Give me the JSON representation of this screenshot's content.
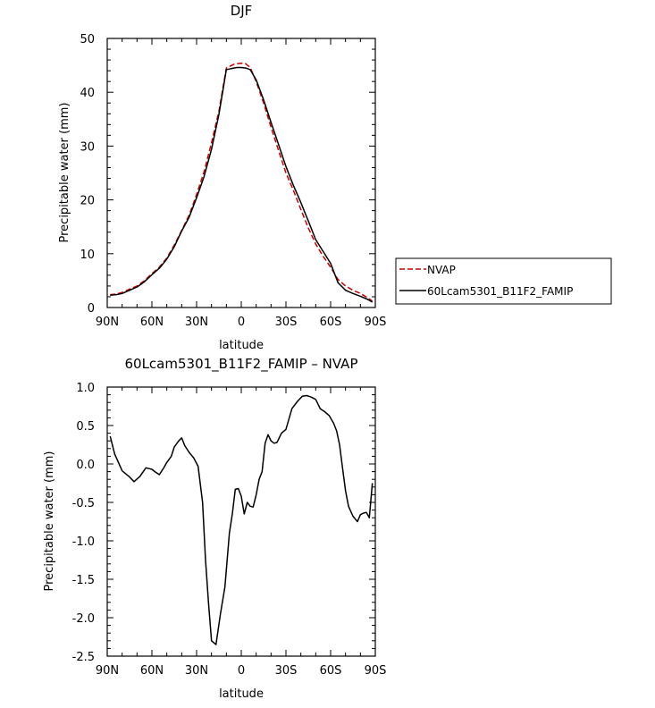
{
  "chart_data": [
    {
      "type": "line",
      "title": "DJF",
      "xlabel": "latitude",
      "ylabel": "Precipitable water (mm)",
      "xlim": [
        -90,
        90
      ],
      "ylim": [
        0,
        50
      ],
      "x_ticks": [
        -90,
        -60,
        -30,
        0,
        30,
        60,
        90
      ],
      "x_tick_labels": [
        "90N",
        "60N",
        "30N",
        "0",
        "30S",
        "60S",
        "90S"
      ],
      "y_ticks": [
        0,
        10,
        20,
        30,
        40,
        50
      ],
      "y_tick_labels": [
        "0",
        "10",
        "20",
        "30",
        "40",
        "50"
      ],
      "legend_position": "right",
      "series": [
        {
          "name": "NVAP",
          "color": "#cc0000",
          "dash": "dashed",
          "x": [
            -88,
            -84,
            -80,
            -75,
            -70,
            -65,
            -60,
            -55,
            -50,
            -45,
            -40,
            -35,
            -30,
            -25,
            -20,
            -15,
            -10,
            -5,
            -3,
            0,
            3,
            6,
            10,
            15,
            20,
            25,
            30,
            35,
            40,
            45,
            50,
            55,
            60,
            65,
            70,
            75,
            80,
            85,
            88
          ],
          "y": [
            2.4,
            2.5,
            2.8,
            3.4,
            4.0,
            5.0,
            6.3,
            7.5,
            9.2,
            11.6,
            14.3,
            17.2,
            21.0,
            25.2,
            30.6,
            36.5,
            44.5,
            45.2,
            45.3,
            45.4,
            45.3,
            44.6,
            42.0,
            38.0,
            33.5,
            29.2,
            25.0,
            21.8,
            18.2,
            14.8,
            11.8,
            9.5,
            7.5,
            5.2,
            4.0,
            3.2,
            2.6,
            1.8,
            1.2
          ]
        },
        {
          "name": "60Lcam5301_B11F2_FAMIP",
          "color": "#000000",
          "dash": "solid",
          "x": [
            -88,
            -84,
            -80,
            -75,
            -70,
            -65,
            -60,
            -55,
            -50,
            -45,
            -40,
            -35,
            -30,
            -25,
            -20,
            -15,
            -10,
            -5,
            -3,
            0,
            3,
            6,
            10,
            15,
            20,
            25,
            30,
            35,
            40,
            45,
            50,
            55,
            60,
            65,
            70,
            75,
            80,
            85,
            88
          ],
          "y": [
            2.3,
            2.4,
            2.6,
            3.2,
            3.8,
            4.8,
            6.1,
            7.3,
            9.0,
            11.3,
            14.2,
            16.8,
            20.4,
            24.3,
            29.4,
            35.9,
            44.2,
            44.5,
            44.6,
            44.6,
            44.5,
            44.2,
            42.3,
            38.6,
            34.4,
            30.3,
            26.2,
            22.7,
            19.5,
            16.1,
            12.6,
            10.4,
            8.2,
            4.6,
            3.2,
            2.6,
            2.1,
            1.5,
            1.0
          ]
        }
      ]
    },
    {
      "type": "line",
      "title": "60Lcam5301_B11F2_FAMIP – NVAP",
      "xlabel": "latitude",
      "ylabel": "Precipitable water (mm)",
      "xlim": [
        -90,
        90
      ],
      "ylim": [
        -2.5,
        1.0
      ],
      "x_ticks": [
        -90,
        -60,
        -30,
        0,
        30,
        60,
        90
      ],
      "x_tick_labels": [
        "90N",
        "60N",
        "30N",
        "0",
        "30S",
        "60S",
        "90S"
      ],
      "y_ticks": [
        -2.5,
        -2.0,
        -1.5,
        -1.0,
        -0.5,
        0.0,
        0.5,
        1.0
      ],
      "y_tick_labels": [
        "-2.5",
        "-2.0",
        "-1.5",
        "-1.0",
        "-0.5",
        "0.0",
        "0.5",
        "1.0"
      ],
      "series": [
        {
          "color": "#000000",
          "dash": "solid",
          "x": [
            -88,
            -85,
            -80,
            -75,
            -72,
            -68,
            -64,
            -60,
            -58,
            -55,
            -52,
            -50,
            -47,
            -45,
            -42,
            -40,
            -38,
            -35,
            -32,
            -29,
            -26,
            -24,
            -22,
            -20,
            -17,
            -14,
            -11,
            -8,
            -6,
            -4,
            -2,
            0,
            2,
            4,
            6,
            8,
            10,
            12,
            14,
            16,
            18,
            20,
            22,
            24,
            27,
            30,
            34,
            38,
            41,
            44,
            47,
            50,
            53,
            56,
            59,
            62,
            64,
            66,
            68,
            70,
            72,
            75,
            78,
            80,
            82,
            84,
            86,
            88
          ],
          "y": [
            0.36,
            0.13,
            -0.09,
            -0.17,
            -0.23,
            -0.16,
            -0.05,
            -0.07,
            -0.1,
            -0.14,
            -0.05,
            0.02,
            0.1,
            0.22,
            0.3,
            0.34,
            0.24,
            0.15,
            0.08,
            -0.03,
            -0.5,
            -1.25,
            -1.8,
            -2.3,
            -2.35,
            -1.95,
            -1.6,
            -0.9,
            -0.65,
            -0.33,
            -0.32,
            -0.42,
            -0.65,
            -0.5,
            -0.55,
            -0.56,
            -0.4,
            -0.2,
            -0.1,
            0.27,
            0.38,
            0.3,
            0.27,
            0.28,
            0.4,
            0.45,
            0.72,
            0.82,
            0.88,
            0.89,
            0.87,
            0.84,
            0.72,
            0.68,
            0.63,
            0.53,
            0.43,
            0.25,
            -0.05,
            -0.35,
            -0.55,
            -0.68,
            -0.75,
            -0.66,
            -0.64,
            -0.63,
            -0.7,
            -0.25
          ]
        }
      ]
    }
  ]
}
